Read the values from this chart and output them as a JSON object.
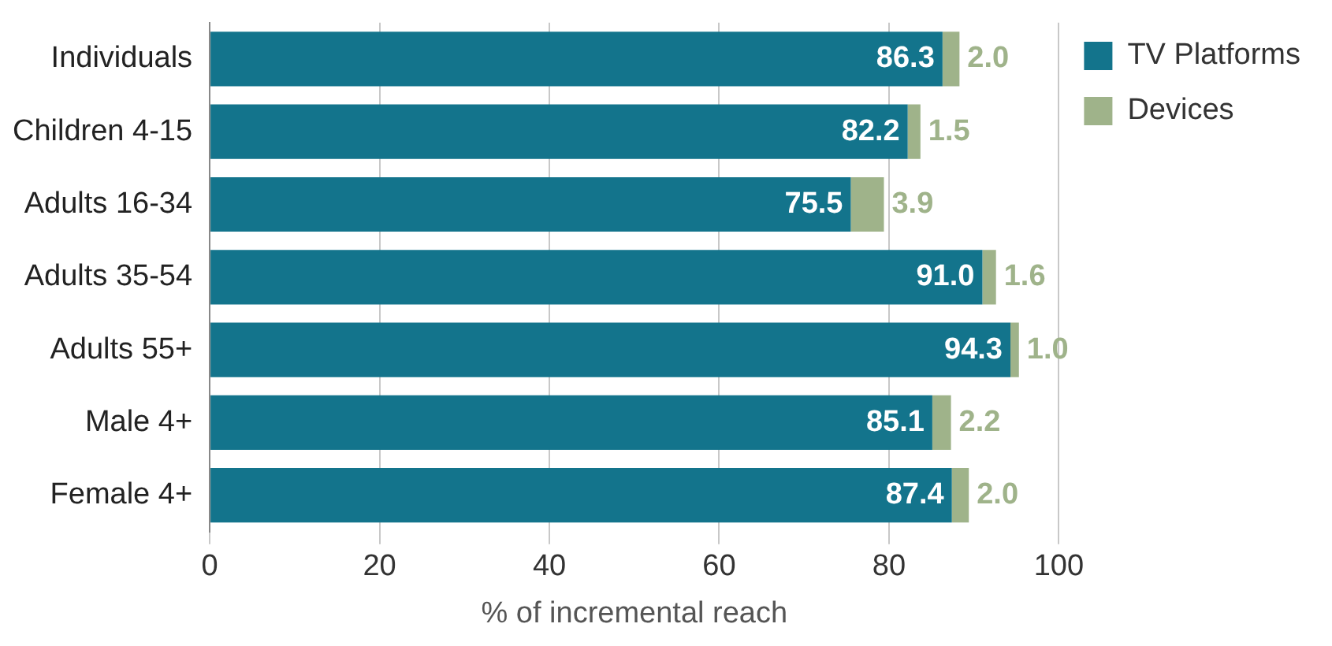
{
  "chart_data": {
    "type": "bar",
    "orientation": "horizontal",
    "stacked": true,
    "xlabel": "% of incremental reach",
    "categories": [
      "Individuals",
      "Children 4-15",
      "Adults 16-34",
      "Adults 35-54",
      "Adults 55+",
      "Male 4+",
      "Female 4+"
    ],
    "series": [
      {
        "name": "TV Platforms",
        "color": "#13748c",
        "values": [
          86.3,
          82.2,
          75.5,
          91.0,
          94.3,
          85.1,
          87.4
        ],
        "value_labels": [
          "86.3",
          "82.2",
          "75.5",
          "91.0",
          "94.3",
          "85.1",
          "87.4"
        ]
      },
      {
        "name": "Devices",
        "color": "#9fb38a",
        "values": [
          2.0,
          1.5,
          3.9,
          1.6,
          1.0,
          2.2,
          2.0
        ],
        "value_labels": [
          "2.0",
          "1.5",
          "3.9",
          "1.6",
          "1.0",
          "2.2",
          "2.0"
        ]
      }
    ],
    "xlim": [
      0,
      100
    ],
    "xticks": [
      0,
      20,
      40,
      60,
      80,
      100
    ],
    "grid": "x",
    "legend": "top right"
  }
}
